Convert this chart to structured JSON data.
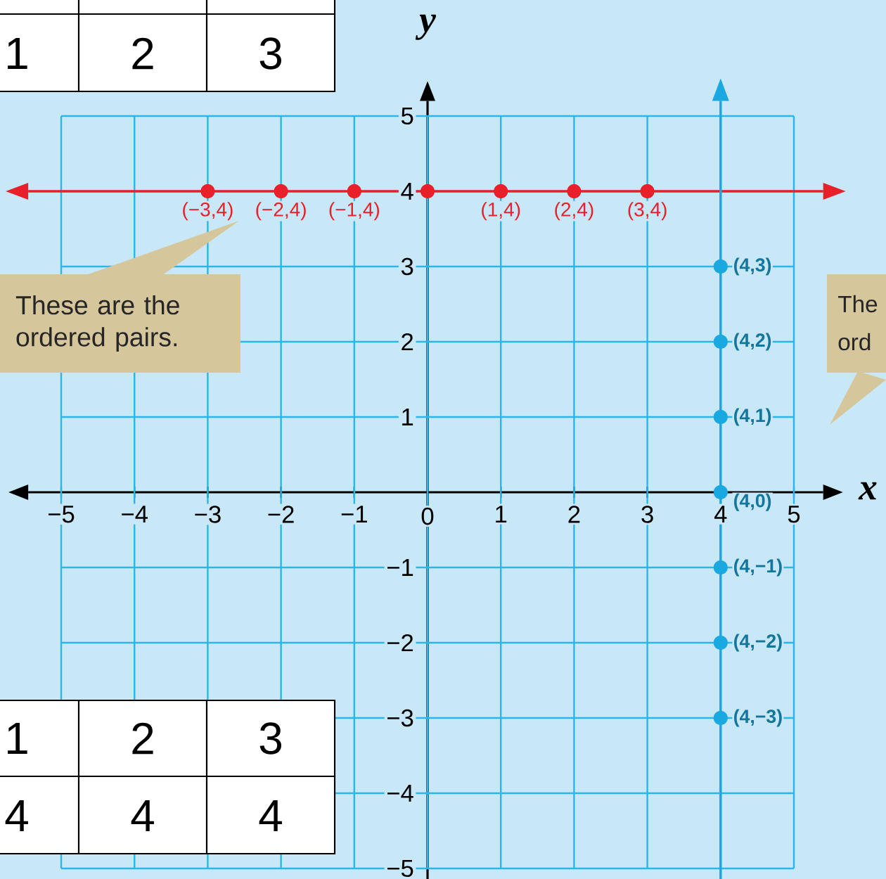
{
  "chart_data": {
    "type": "scatter",
    "xlabel": "x",
    "ylabel": "y",
    "xlim": [
      -5.45,
      5.4
    ],
    "ylim": [
      -5.15,
      5.2
    ],
    "xticks": [
      {
        "value": -5,
        "label": "−5"
      },
      {
        "value": -4,
        "label": "−4"
      },
      {
        "value": -3,
        "label": "−3"
      },
      {
        "value": -2,
        "label": "−2"
      },
      {
        "value": -1,
        "label": "−1"
      },
      0,
      1,
      2,
      3,
      4,
      5
    ],
    "yticks": [
      {
        "value": -5,
        "label": "−5"
      },
      {
        "value": -4,
        "label": "−4"
      },
      {
        "value": -3,
        "label": "−3"
      },
      {
        "value": -2,
        "label": "−2"
      },
      {
        "value": -1,
        "label": "−1"
      },
      1,
      2,
      3,
      4,
      5
    ],
    "grid": true,
    "marker": "circle",
    "series": [
      {
        "color": "#e8202a",
        "x": [
          -3,
          -2,
          -1,
          0,
          1,
          2,
          3
        ],
        "values": [
          4,
          4,
          4,
          4,
          4,
          4,
          4
        ]
      },
      {
        "color": "#1aa8e0",
        "x": [
          4,
          4,
          4,
          4,
          4,
          4,
          4
        ],
        "values": [
          3,
          2,
          1,
          0,
          -1,
          -2,
          -3
        ]
      }
    ],
    "ref_lines": [
      {
        "axis": "y",
        "value": 4,
        "color": "#e8202a"
      },
      {
        "axis": "x",
        "value": 4,
        "color": "#1aa8e0"
      }
    ],
    "annotations": [
      "These are the ordered pairs.",
      "The",
      "ord",
      "1",
      "2",
      "3",
      "1",
      "2",
      "3",
      "4",
      "4",
      "4",
      {
        "text": "(−3,4)",
        "x": -3,
        "y": 4
      },
      {
        "text": "(−2,4)",
        "x": -2,
        "y": 4
      },
      {
        "text": "(−1,4)",
        "x": -1,
        "y": 4
      },
      {
        "text": "(1,4)",
        "x": 1,
        "y": 4
      },
      {
        "text": "(2,4)",
        "x": 2,
        "y": 4
      },
      {
        "text": "(3,4)",
        "x": 3,
        "y": 4
      },
      {
        "text": "(4,3)",
        "x": 4,
        "y": 3
      },
      {
        "text": "(4,2)",
        "x": 4,
        "y": 2
      },
      {
        "text": "(4,1)",
        "x": 4,
        "y": 1
      },
      {
        "text": "(4,0)",
        "x": 4,
        "y": 0
      },
      {
        "text": "(4,−1)",
        "x": 4,
        "y": -1
      },
      {
        "text": "(4,−2)",
        "x": 4,
        "y": -2
      },
      {
        "text": "(4,−3)",
        "x": 4,
        "y": -3
      }
    ]
  }
}
